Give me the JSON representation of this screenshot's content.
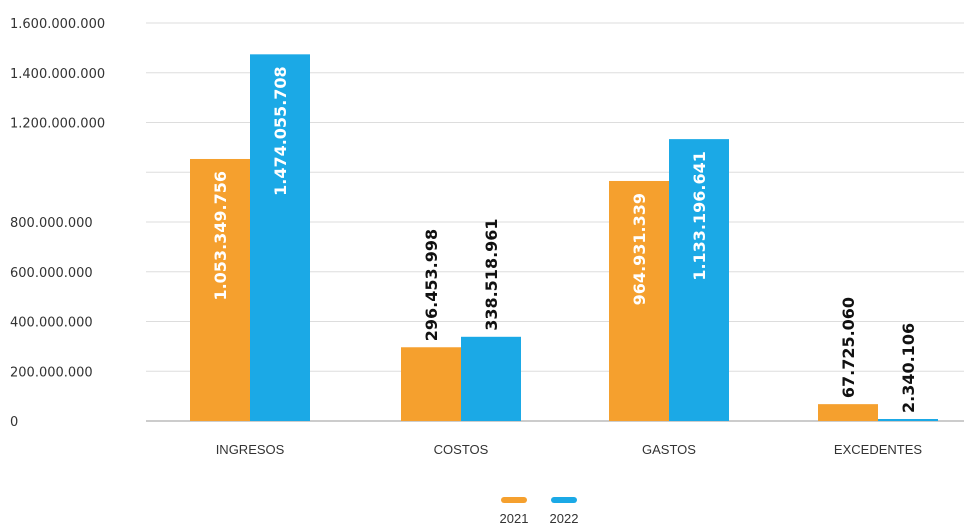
{
  "chart_data": {
    "type": "bar",
    "categories": [
      "INGRESOS",
      "COSTOS",
      "GASTOS",
      "EXCEDENTES"
    ],
    "series": [
      {
        "name": "2021",
        "color": "#F5A02E",
        "values": [
          1053349756,
          296453998,
          964931339,
          67725060
        ],
        "labels": [
          "1.053.349.756",
          "296.453.998",
          "964.931.339",
          "67.725.060"
        ],
        "label_inside": [
          true,
          false,
          true,
          false
        ]
      },
      {
        "name": "2022",
        "color": "#1BA9E6",
        "values": [
          1474055708,
          338518961,
          1133196641,
          2340106
        ],
        "labels": [
          "1.474.055.708",
          "338.518.961",
          "1.133.196.641",
          "2.340.106"
        ],
        "label_inside": [
          true,
          false,
          true,
          false
        ]
      }
    ],
    "yticks": [
      0,
      200000000,
      400000000,
      600000000,
      800000000,
      1200000000,
      1400000000,
      1600000000
    ],
    "ytick_labels": [
      "0",
      "200.000.000",
      "400.000.000",
      "600.000.000",
      "800.000.000",
      "1.200.000.000",
      "1.400.000.000",
      "1.600.000.000"
    ],
    "ylim": [
      0,
      1600000000
    ],
    "grid": true,
    "legend_position": "bottom-center",
    "title": "",
    "xlabel": "",
    "ylabel": ""
  }
}
